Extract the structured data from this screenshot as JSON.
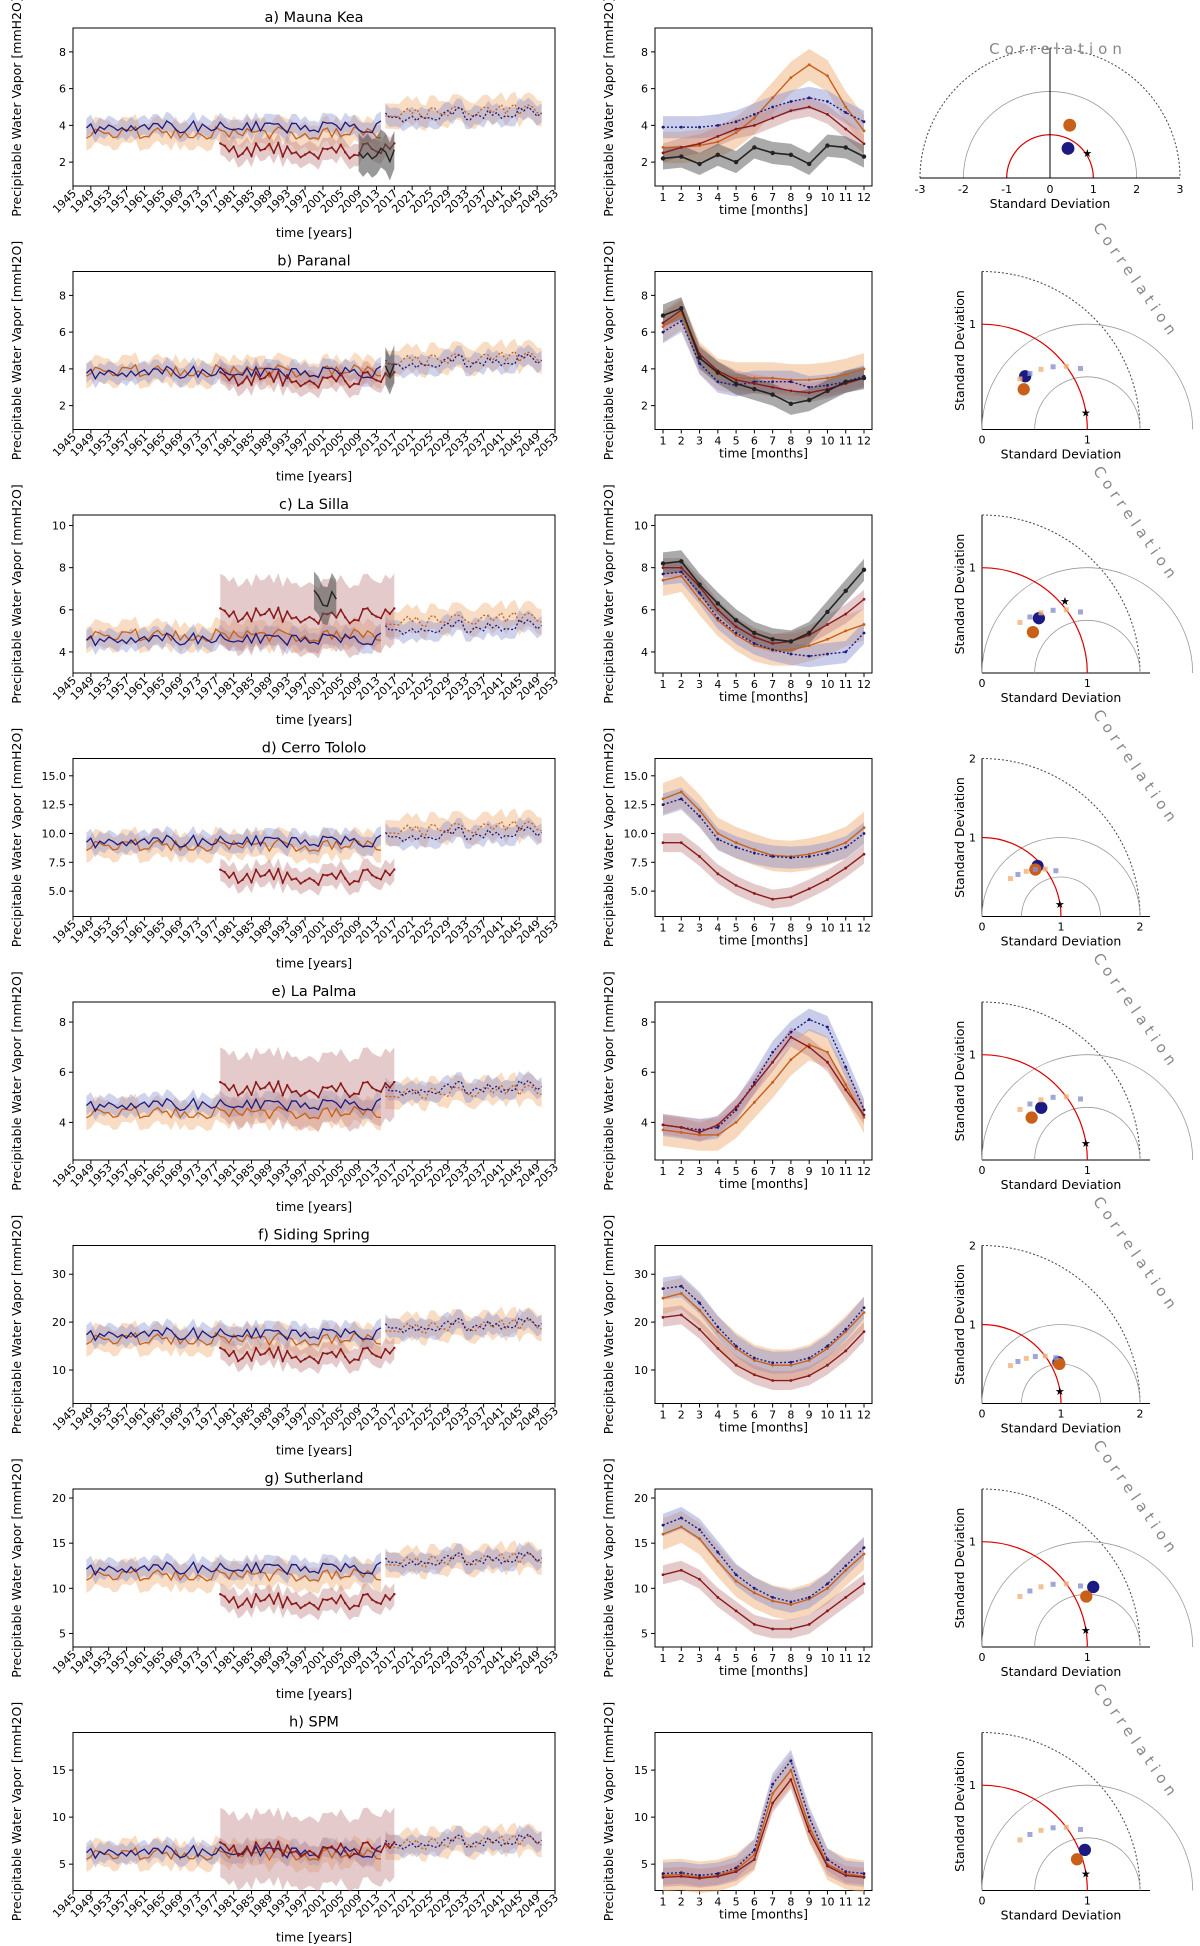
{
  "colors": {
    "obs_reanalysis": "#8b1a1a",
    "hist_blue": "#1a1a80",
    "hist_orange": "#c8601a",
    "insitu_black": "#222222",
    "band_orange": "#f0b27a",
    "band_blue": "#8a90d0",
    "band_red": "#c48a8a",
    "band_black": "#555555"
  },
  "common": {
    "ylabel": "Precipitable Water Vapor [mmH2O]",
    "ylabel_short": "Precipitable Water Vapor [mmH2O]",
    "time_xlabel": "time [years]",
    "seasonal_xlabel": "time [months]",
    "taylor_xlabel": "Standard Deviation",
    "taylor_ylabel": "Standard Deviation",
    "taylor_corr_label": "Correlation",
    "year_ticks": [
      "1945",
      "1949",
      "1953",
      "1957",
      "1961",
      "1965",
      "1969",
      "1973",
      "1977",
      "1981",
      "1985",
      "1989",
      "1993",
      "1997",
      "2001",
      "2005",
      "2009",
      "2013",
      "2017",
      "2021",
      "2025",
      "2029",
      "2033",
      "2037",
      "2041",
      "2045",
      "2049",
      "2053"
    ],
    "month_ticks": [
      "1",
      "2",
      "3",
      "4",
      "5",
      "6",
      "7",
      "8",
      "9",
      "10",
      "11",
      "12"
    ]
  },
  "chart_data": [
    {
      "id": "mauna-kea",
      "type": "line",
      "title": "a) Mauna Kea",
      "ylim_ts": [
        0.7,
        9.3
      ],
      "yticks_ts": [
        "2",
        "4",
        "6",
        "8"
      ],
      "yvals_ts": [
        2,
        4,
        6,
        8
      ],
      "series_level": {
        "hist_blue": 3.9,
        "hist_orange": 3.6,
        "future_blue": 4.5,
        "future_orange": 4.6,
        "obs": 2.6,
        "insitu": 2.3
      },
      "obs_years": [
        1978,
        2017
      ],
      "insitu_years": [
        2009,
        2017
      ],
      "ylim_seas": [
        0.7,
        9.3
      ],
      "yticks_seas": [
        "2",
        "4",
        "6",
        "8"
      ],
      "yvals_seas": [
        2,
        4,
        6,
        8
      ],
      "seasonal": {
        "hist_blue": [
          3.9,
          3.9,
          3.9,
          4.0,
          4.2,
          4.6,
          5.0,
          5.3,
          5.5,
          5.3,
          4.7,
          4.2
        ],
        "hist_orange": [
          2.8,
          2.8,
          2.9,
          3.1,
          3.6,
          4.4,
          5.5,
          6.6,
          7.3,
          6.7,
          5.0,
          3.7
        ],
        "obs": [
          2.5,
          2.8,
          3.0,
          3.4,
          3.8,
          4.0,
          4.4,
          4.8,
          5.0,
          4.6,
          3.8,
          3.0
        ],
        "insitu": [
          2.2,
          2.3,
          1.9,
          2.4,
          2.0,
          2.8,
          2.5,
          2.4,
          1.9,
          2.9,
          2.8,
          2.3
        ]
      },
      "taylor": {
        "type": "full",
        "max_sd": 3,
        "sd_ticks": [
          "-3",
          "-2",
          "-1",
          "0",
          "1",
          "2",
          "3"
        ],
        "points": [
          {
            "r": 0.8,
            "corr": 0.52,
            "color": "hist_blue",
            "size": 9
          },
          {
            "r": 1.3,
            "corr": 0.35,
            "color": "hist_orange",
            "size": 9
          },
          {
            "r": 1.05,
            "corr": 0.82,
            "color": "obs",
            "marker": "star"
          }
        ]
      }
    },
    {
      "id": "paranal",
      "type": "line",
      "title": "b) Paranal",
      "ylim_ts": [
        0.7,
        9.3
      ],
      "yticks_ts": [
        "2",
        "4",
        "6",
        "8"
      ],
      "yvals_ts": [
        2,
        4,
        6,
        8
      ],
      "series_level": {
        "hist_blue": 3.8,
        "hist_orange": 3.9,
        "future_blue": 4.3,
        "future_orange": 4.4,
        "obs": 3.4,
        "insitu": 3.9
      },
      "obs_years": [
        1978,
        2017
      ],
      "insitu_years": [
        2015,
        2017
      ],
      "ylim_seas": [
        0.7,
        9.3
      ],
      "yticks_seas": [
        "2",
        "4",
        "6",
        "8"
      ],
      "yvals_seas": [
        2,
        4,
        6,
        8
      ],
      "seasonal": {
        "hist_blue": [
          6.0,
          6.6,
          4.3,
          3.3,
          3.1,
          3.3,
          3.3,
          3.3,
          3.0,
          3.1,
          3.3,
          3.6
        ],
        "hist_orange": [
          6.3,
          7.0,
          4.6,
          3.7,
          3.5,
          3.5,
          3.5,
          3.4,
          3.4,
          3.5,
          3.7,
          4.0
        ],
        "obs": [
          6.5,
          7.2,
          4.8,
          3.9,
          3.4,
          3.2,
          3.0,
          2.8,
          2.7,
          2.9,
          3.2,
          3.5
        ],
        "insitu": [
          6.9,
          7.3,
          4.6,
          3.8,
          3.2,
          2.9,
          2.6,
          2.1,
          2.3,
          2.8,
          3.3,
          3.5
        ]
      },
      "taylor": {
        "type": "quarter",
        "max_sd": 1.5,
        "sd_ticks": [
          "0",
          "1"
        ],
        "sd_tick_vals": [
          0,
          1
        ],
        "points": [
          {
            "r": 0.65,
            "corr": 0.63,
            "color": "hist_blue",
            "size": 8
          },
          {
            "r": 0.55,
            "corr": 0.72,
            "color": "hist_orange",
            "size": 8
          },
          {
            "r": 1.0,
            "corr": 0.985,
            "color": "obs",
            "marker": "star"
          }
        ]
      }
    },
    {
      "id": "la-silla",
      "type": "line",
      "title": "c) La Silla",
      "ylim_ts": [
        3,
        10.5
      ],
      "yticks_ts": [
        "4",
        "6",
        "8",
        "10"
      ],
      "yvals_ts": [
        4,
        6,
        8,
        10
      ],
      "series_level": {
        "hist_blue": 4.6,
        "hist_orange": 4.8,
        "future_blue": 5.1,
        "future_orange": 5.4,
        "obs": 5.7,
        "insitu": 6.5
      },
      "obs_years": [
        1978,
        2017
      ],
      "insitu_years": [
        1999,
        2004
      ],
      "ylim_seas": [
        3,
        10.5
      ],
      "yticks_seas": [
        "4",
        "6",
        "8",
        "10"
      ],
      "yvals_seas": [
        4,
        6,
        8,
        10
      ],
      "seasonal": {
        "hist_blue": [
          7.7,
          7.8,
          6.8,
          5.6,
          4.9,
          4.4,
          4.1,
          3.9,
          3.8,
          3.9,
          4.0,
          4.9
        ],
        "hist_orange": [
          7.4,
          7.6,
          6.5,
          5.5,
          4.8,
          4.3,
          4.1,
          4.1,
          4.3,
          4.6,
          5.0,
          5.3
        ],
        "obs": [
          8.0,
          8.0,
          7.1,
          6.0,
          5.2,
          4.7,
          4.4,
          4.5,
          4.8,
          5.3,
          5.8,
          6.5
        ],
        "insitu": [
          8.2,
          8.3,
          7.2,
          6.3,
          5.5,
          4.9,
          4.6,
          4.5,
          4.9,
          5.9,
          6.9,
          7.9
        ]
      },
      "taylor": {
        "type": "quarter",
        "max_sd": 1.5,
        "sd_ticks": [
          "0",
          "1"
        ],
        "sd_tick_vals": [
          0,
          1
        ],
        "points": [
          {
            "r": 0.75,
            "corr": 0.72,
            "color": "hist_blue",
            "size": 8
          },
          {
            "r": 0.62,
            "corr": 0.78,
            "color": "hist_orange",
            "size": 8
          },
          {
            "r": 1.05,
            "corr": 0.75,
            "color": "obs",
            "marker": "star"
          }
        ]
      }
    },
    {
      "id": "cerro-tololo",
      "type": "line",
      "title": "d) Cerro Tololo",
      "ylim_ts": [
        2.8,
        16.5
      ],
      "yticks_ts": [
        "5.0",
        "7.5",
        "10.0",
        "12.5",
        "15.0"
      ],
      "yvals_ts": [
        5,
        7.5,
        10,
        12.5,
        15
      ],
      "series_level": {
        "hist_blue": 9.3,
        "hist_orange": 9.0,
        "future_blue": 9.8,
        "future_orange": 10.2,
        "obs": 6.2,
        "insitu": null
      },
      "obs_years": [
        1978,
        2017
      ],
      "insitu_years": null,
      "ylim_seas": [
        2.8,
        16.5
      ],
      "yticks_seas": [
        "5.0",
        "7.5",
        "10.0",
        "12.5",
        "15.0"
      ],
      "yvals_seas": [
        5,
        7.5,
        10,
        12.5,
        15
      ],
      "seasonal": {
        "hist_blue": [
          12.5,
          13.0,
          11.5,
          9.5,
          8.8,
          8.3,
          8.0,
          7.9,
          8.0,
          8.3,
          8.8,
          10.0
        ],
        "hist_orange": [
          13.0,
          13.6,
          12.0,
          10.0,
          9.2,
          8.6,
          8.1,
          8.0,
          8.2,
          8.6,
          9.2,
          10.5
        ],
        "obs": [
          9.2,
          9.2,
          8.0,
          6.5,
          5.5,
          4.8,
          4.3,
          4.5,
          5.2,
          6.0,
          7.0,
          8.2
        ],
        "insitu": null
      },
      "taylor": {
        "type": "quarter",
        "max_sd": 2,
        "sd_ticks": [
          "0",
          "1",
          "2"
        ],
        "sd_tick_vals": [
          0,
          1,
          2
        ],
        "points": [
          {
            "r": 0.95,
            "corr": 0.74,
            "color": "hist_blue",
            "size": 8
          },
          {
            "r": 0.9,
            "corr": 0.75,
            "color": "hist_orange",
            "size": 8
          },
          {
            "r": 1.0,
            "corr": 0.985,
            "color": "obs",
            "marker": "star"
          }
        ]
      }
    },
    {
      "id": "la-palma",
      "type": "line",
      "title": "e) La Palma",
      "ylim_ts": [
        2.5,
        8.8
      ],
      "yticks_ts": [
        "4",
        "6",
        "8"
      ],
      "yvals_ts": [
        4,
        6,
        8
      ],
      "series_level": {
        "hist_blue": 4.7,
        "hist_orange": 4.4,
        "future_blue": 5.3,
        "future_orange": 5.1,
        "obs": 5.3,
        "insitu": null
      },
      "obs_years": [
        1978,
        2017
      ],
      "insitu_years": null,
      "ylim_seas": [
        2.5,
        8.8
      ],
      "yticks_seas": [
        "4",
        "6",
        "8"
      ],
      "yvals_seas": [
        4,
        6,
        8
      ],
      "seasonal": {
        "hist_blue": [
          3.9,
          3.8,
          3.7,
          3.8,
          4.5,
          5.6,
          6.8,
          7.6,
          8.1,
          7.8,
          6.2,
          4.5
        ],
        "hist_orange": [
          3.7,
          3.6,
          3.5,
          3.5,
          4.0,
          4.8,
          5.6,
          6.5,
          7.1,
          6.8,
          5.5,
          4.2
        ],
        "obs": [
          3.9,
          3.8,
          3.6,
          3.9,
          4.6,
          5.5,
          6.4,
          7.4,
          7.0,
          6.4,
          5.3,
          4.3
        ],
        "insitu": null
      },
      "taylor": {
        "type": "quarter",
        "max_sd": 1.5,
        "sd_ticks": [
          "0",
          "1"
        ],
        "sd_tick_vals": [
          0,
          1
        ],
        "points": [
          {
            "r": 0.75,
            "corr": 0.75,
            "color": "hist_blue",
            "size": 8
          },
          {
            "r": 0.62,
            "corr": 0.76,
            "color": "hist_orange",
            "size": 8
          },
          {
            "r": 1.0,
            "corr": 0.985,
            "color": "obs",
            "marker": "star"
          }
        ]
      }
    },
    {
      "id": "siding-spring",
      "type": "line",
      "title": "f) Siding Spring",
      "ylim_ts": [
        3,
        36
      ],
      "yticks_ts": [
        "10",
        "20",
        "30"
      ],
      "yvals_ts": [
        10,
        20,
        30
      ],
      "series_level": {
        "hist_blue": 17.5,
        "hist_orange": 16.5,
        "future_blue": 19.0,
        "future_orange": 18.5,
        "obs": 13.0,
        "insitu": null
      },
      "obs_years": [
        1978,
        2017
      ],
      "insitu_years": null,
      "ylim_seas": [
        3,
        36
      ],
      "yticks_seas": [
        "10",
        "20",
        "30"
      ],
      "yvals_seas": [
        10,
        20,
        30
      ],
      "seasonal": {
        "hist_blue": [
          27.0,
          27.5,
          24.0,
          19.0,
          15.0,
          12.5,
          11.5,
          11.6,
          12.5,
          15.0,
          18.5,
          23.0
        ],
        "hist_orange": [
          25.0,
          26.0,
          22.5,
          18.0,
          14.5,
          12.0,
          11.0,
          11.0,
          12.0,
          14.5,
          18.0,
          22.0
        ],
        "obs": [
          21.0,
          21.5,
          18.5,
          14.5,
          11.0,
          9.0,
          7.8,
          7.8,
          8.8,
          11.0,
          14.0,
          18.0
        ],
        "insitu": null
      },
      "taylor": {
        "type": "quarter",
        "max_sd": 2,
        "sd_ticks": [
          "0",
          "1",
          "2"
        ],
        "sd_tick_vals": [
          0,
          1,
          2
        ],
        "points": [
          {
            "r": 1.1,
            "corr": 0.88,
            "color": "hist_blue",
            "size": 8
          },
          {
            "r": 1.1,
            "corr": 0.89,
            "color": "hist_orange",
            "size": 8
          },
          {
            "r": 1.0,
            "corr": 0.985,
            "color": "obs",
            "marker": "star"
          }
        ]
      }
    },
    {
      "id": "sutherland",
      "type": "line",
      "title": "g) Sutherland",
      "ylim_ts": [
        3.5,
        21
      ],
      "yticks_ts": [
        "5",
        "10",
        "15",
        "20"
      ],
      "yvals_ts": [
        5,
        10,
        15,
        20
      ],
      "series_level": {
        "hist_blue": 12.2,
        "hist_orange": 11.5,
        "future_blue": 13.0,
        "future_orange": 12.8,
        "obs": 8.5,
        "insitu": null
      },
      "obs_years": [
        1978,
        2017
      ],
      "insitu_years": null,
      "ylim_seas": [
        3.5,
        21
      ],
      "yticks_seas": [
        "5",
        "10",
        "15",
        "20"
      ],
      "yvals_seas": [
        5,
        10,
        15,
        20
      ],
      "seasonal": {
        "hist_blue": [
          17.0,
          17.8,
          16.5,
          14.0,
          11.5,
          10.0,
          9.0,
          8.5,
          9.0,
          10.5,
          12.5,
          14.5
        ],
        "hist_orange": [
          16.0,
          16.8,
          15.5,
          13.0,
          10.8,
          9.5,
          8.6,
          8.2,
          8.8,
          10.0,
          12.0,
          13.8
        ],
        "obs": [
          11.5,
          12.0,
          11.0,
          9.0,
          7.5,
          6.0,
          5.5,
          5.5,
          6.0,
          7.5,
          9.0,
          10.5
        ],
        "insitu": null
      },
      "taylor": {
        "type": "quarter",
        "max_sd": 1.5,
        "sd_ticks": [
          "0",
          "1"
        ],
        "sd_tick_vals": [
          0,
          1
        ],
        "points": [
          {
            "r": 1.2,
            "corr": 0.88,
            "color": "hist_blue",
            "size": 8
          },
          {
            "r": 1.1,
            "corr": 0.9,
            "color": "hist_orange",
            "size": 8
          },
          {
            "r": 1.0,
            "corr": 0.985,
            "color": "obs",
            "marker": "star"
          }
        ]
      }
    },
    {
      "id": "spm",
      "type": "line",
      "title": "h) SPM",
      "ylim_ts": [
        2.2,
        19
      ],
      "yticks_ts": [
        "5",
        "10",
        "15"
      ],
      "yvals_ts": [
        5,
        10,
        15
      ],
      "series_level": {
        "hist_blue": 6.3,
        "hist_orange": 6.1,
        "future_blue": 7.2,
        "future_orange": 7.0,
        "obs": 6.5,
        "insitu": null
      },
      "obs_years": [
        1978,
        2017
      ],
      "insitu_years": null,
      "ylim_seas": [
        2.2,
        19
      ],
      "yticks_seas": [
        "5",
        "10",
        "15"
      ],
      "yvals_seas": [
        5,
        10,
        15
      ],
      "seasonal": {
        "hist_blue": [
          4.0,
          4.1,
          3.8,
          4.0,
          4.6,
          6.5,
          13.5,
          16.0,
          10.0,
          5.5,
          4.2,
          4.0
        ],
        "hist_orange": [
          3.8,
          3.9,
          3.6,
          3.8,
          4.4,
          6.0,
          12.5,
          15.0,
          9.0,
          5.0,
          4.0,
          3.7
        ],
        "obs": [
          3.6,
          3.7,
          3.5,
          3.7,
          4.2,
          5.5,
          11.5,
          14.0,
          8.5,
          4.8,
          3.8,
          3.6
        ],
        "insitu": null
      },
      "taylor": {
        "type": "quarter",
        "max_sd": 1.5,
        "sd_ticks": [
          "0",
          "1"
        ],
        "sd_tick_vals": [
          0,
          1
        ],
        "points": [
          {
            "r": 1.05,
            "corr": 0.93,
            "color": "hist_blue",
            "size": 8
          },
          {
            "r": 0.95,
            "corr": 0.95,
            "color": "hist_orange",
            "size": 8
          },
          {
            "r": 1.0,
            "corr": 0.985,
            "color": "obs",
            "marker": "star"
          }
        ]
      }
    }
  ]
}
